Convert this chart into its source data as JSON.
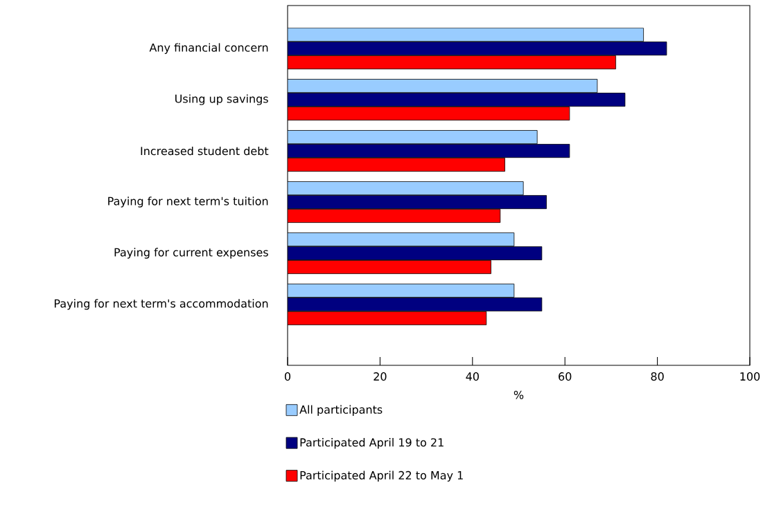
{
  "chart_data": {
    "type": "bar",
    "orientation": "horizontal",
    "xlabel": "%",
    "categories": [
      "Any financial concern",
      "Using up savings",
      "Increased student debt",
      "Paying for next term's tuition",
      "Paying for current expenses",
      "Paying for next term's accommodation"
    ],
    "series": [
      {
        "name": "All participants",
        "color": "#99ccff",
        "values": [
          77,
          67,
          54,
          51,
          49,
          49
        ]
      },
      {
        "name": "Participated April 19 to 21",
        "color": "#000080",
        "values": [
          82,
          73,
          61,
          56,
          55,
          55
        ]
      },
      {
        "name": "Participated April 22 to May 1",
        "color": "#ff0000",
        "values": [
          71,
          61,
          47,
          46,
          44,
          43
        ]
      }
    ],
    "xlim": [
      0,
      100
    ],
    "xticks": [
      0,
      20,
      40,
      60,
      80,
      100
    ],
    "grid": false,
    "legend": "bottom"
  }
}
